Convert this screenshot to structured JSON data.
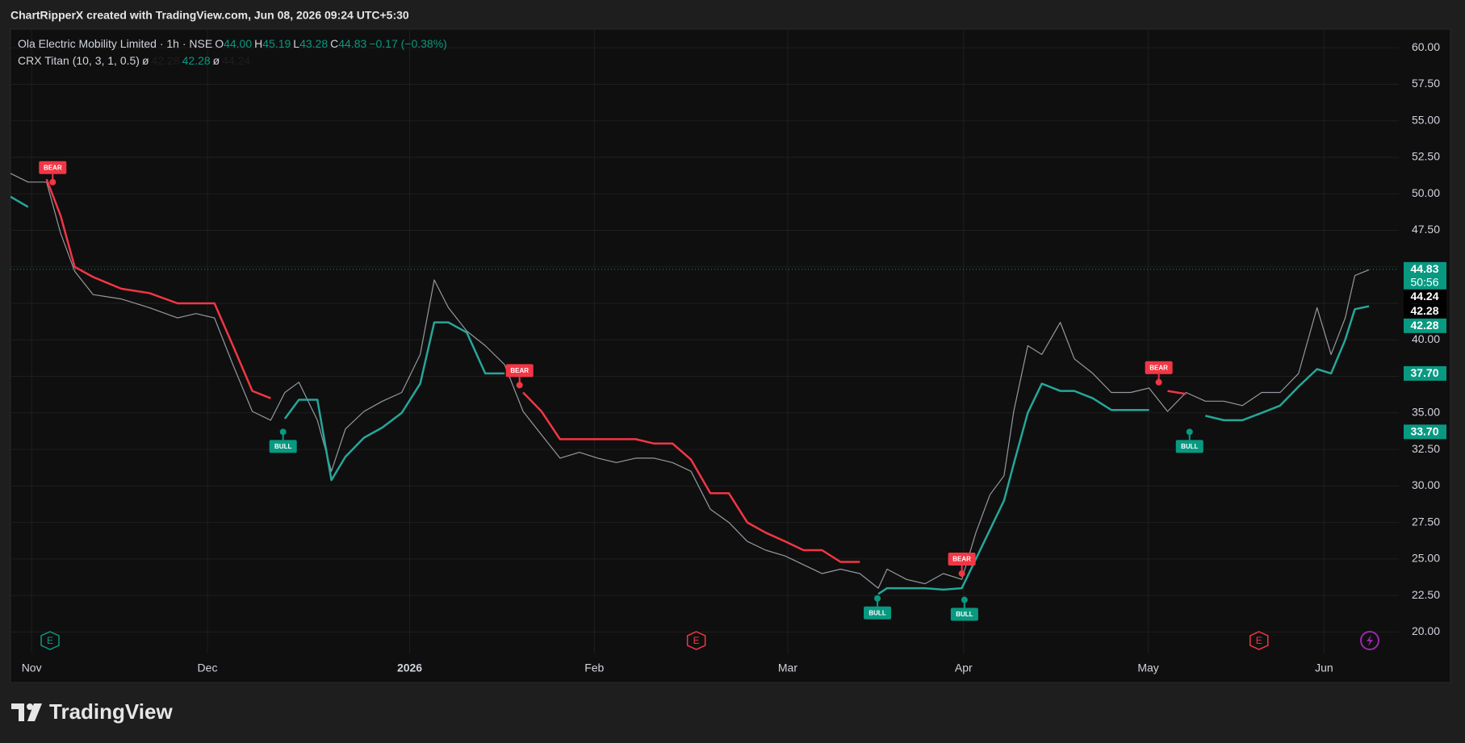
{
  "header": {
    "credit": "ChartRipperX created with TradingView.com, Jun 08, 2026 09:24 UTC+5:30"
  },
  "chart_data": {
    "type": "line",
    "symbol": "Ola Electric Mobility Limited · 1h · NSE",
    "ohlc": [
      {
        "name": "O",
        "text": "44.00"
      },
      {
        "name": "H",
        "text": "45.19"
      },
      {
        "name": "L",
        "text": "43.28"
      },
      {
        "name": "C",
        "text": "44.83"
      }
    ],
    "change": "−0.17 (−0.38%)",
    "readout_color": "#089981",
    "indicator": {
      "name": "CRX Titan (10, 3, 1, 0.5)",
      "readout": [
        {
          "text": "ø",
          "color": "#d1d4dc"
        },
        {
          "text": "42.28",
          "color": "#1e1e1e"
        },
        {
          "text": "42.28",
          "color": "#089981"
        },
        {
          "text": "ø",
          "color": "#d1d4dc"
        },
        {
          "text": "44.24",
          "color": "#1e1e1e"
        }
      ]
    },
    "x": [
      -2.4,
      -0.4,
      1.7,
      3.3,
      4.9,
      7.0,
      10.2,
      13.4,
      16.6,
      18.7,
      20.8,
      22.9,
      25.1,
      27.2,
      28.8,
      30.4,
      32.5,
      34.1,
      35.7,
      37.8,
      39.9,
      42.1,
      44.2,
      45.8,
      47.4,
      49.5,
      51.6,
      53.8,
      55.9,
      58.0,
      60.1,
      62.3,
      64.4,
      66.5,
      68.7,
      70.8,
      72.9,
      75.0,
      77.2,
      79.3,
      81.4,
      83.5,
      85.7,
      87.8,
      89.9,
      92.0,
      94.2,
      96.3,
      97.3,
      99.5,
      101.6,
      103.7,
      105.8,
      107.4,
      109.0,
      110.6,
      111.7,
      113.3,
      114.9,
      117.0,
      118.6,
      120.7,
      122.8,
      125.0,
      127.1,
      129.2,
      131.3,
      133.5,
      135.6,
      137.7,
      139.9,
      142.0,
      144.1,
      146.2,
      147.8,
      149.4,
      150.5,
      152.1
    ],
    "series": [
      {
        "color": "#9598a1",
        "width": 1.2,
        "values": [
          51.4,
          50.8,
          50.8,
          47.3,
          44.7,
          43.1,
          42.8,
          42.2,
          41.5,
          41.8,
          41.5,
          38.3,
          35.1,
          34.5,
          36.4,
          37.1,
          34.5,
          31.0,
          33.9,
          35.1,
          35.8,
          36.4,
          39.0,
          44.1,
          42.2,
          40.6,
          39.6,
          38.3,
          35.1,
          33.5,
          31.9,
          32.3,
          31.9,
          31.6,
          31.9,
          31.9,
          31.6,
          31.0,
          28.4,
          27.5,
          26.2,
          25.6,
          25.2,
          24.6,
          24.0,
          24.3,
          24.0,
          23.0,
          24.3,
          23.6,
          23.3,
          24.0,
          23.6,
          26.8,
          29.4,
          30.7,
          35.1,
          39.6,
          39.0,
          41.2,
          38.7,
          37.7,
          36.4,
          36.4,
          36.7,
          35.1,
          36.4,
          35.8,
          35.8,
          35.5,
          36.4,
          36.4,
          37.7,
          42.2,
          39.0,
          41.5,
          44.4,
          44.8
        ]
      },
      {
        "color": "#26a69a",
        "width": 2.5,
        "values": [
          49.8,
          49.1,
          null,
          null,
          null,
          null,
          null,
          null,
          null,
          null,
          null,
          null,
          null,
          null,
          34.6,
          35.9,
          35.9,
          30.4,
          32.0,
          33.3,
          34.0,
          35.0,
          37.0,
          41.2,
          41.2,
          40.5,
          37.7,
          37.7,
          null,
          null,
          null,
          null,
          null,
          null,
          null,
          null,
          null,
          null,
          null,
          null,
          null,
          null,
          null,
          null,
          null,
          null,
          null,
          22.6,
          23.0,
          23.0,
          23.0,
          22.9,
          23.0,
          25.0,
          27.0,
          29.0,
          31.5,
          35.0,
          37.0,
          36.5,
          36.5,
          36.0,
          35.2,
          35.2,
          35.2,
          null,
          null,
          34.8,
          34.5,
          34.5,
          35.0,
          35.5,
          36.8,
          38.0,
          37.7,
          40.0,
          42.1,
          42.3
        ]
      },
      {
        "color": "#f23645",
        "width": 2.5,
        "values": [
          null,
          null,
          51.0,
          48.5,
          45.0,
          44.3,
          43.5,
          43.2,
          42.5,
          42.5,
          42.5,
          39.6,
          36.5,
          36.0,
          null,
          null,
          null,
          null,
          null,
          null,
          null,
          null,
          null,
          null,
          null,
          null,
          null,
          null,
          36.4,
          35.1,
          33.2,
          33.2,
          33.2,
          33.2,
          33.2,
          32.9,
          32.9,
          31.8,
          29.5,
          29.5,
          27.5,
          26.8,
          26.2,
          25.6,
          25.6,
          24.8,
          24.8,
          null,
          null,
          null,
          null,
          null,
          null,
          null,
          null,
          null,
          null,
          null,
          null,
          null,
          null,
          null,
          null,
          null,
          null,
          36.5,
          36.3,
          null,
          null,
          null,
          null,
          null,
          null,
          null,
          null,
          null,
          null,
          null
        ]
      }
    ],
    "xlim": [
      -2.4,
      155.5
    ],
    "xticks": [
      {
        "value": 0,
        "label": "Nov"
      },
      {
        "value": 20,
        "label": "Dec"
      },
      {
        "value": 43,
        "label": "2026"
      },
      {
        "value": 64,
        "label": "Feb"
      },
      {
        "value": 86,
        "label": "Mar"
      },
      {
        "value": 106,
        "label": "Apr"
      },
      {
        "value": 127,
        "label": "May"
      },
      {
        "value": 147,
        "label": "Jun"
      }
    ],
    "ylim": [
      18.53,
      61.28
    ],
    "yticks": [
      {
        "value": 20,
        "label": "20.00"
      },
      {
        "value": 22.5,
        "label": "22.50"
      },
      {
        "value": 25,
        "label": "25.00"
      },
      {
        "value": 27.5,
        "label": "27.50"
      },
      {
        "value": 30,
        "label": "30.00"
      },
      {
        "value": 32.5,
        "label": "32.50"
      },
      {
        "value": 35,
        "label": "35.00"
      },
      {
        "value": 37.5,
        "label": "37.50"
      },
      {
        "value": 40,
        "label": "40.00"
      },
      {
        "value": 42.5,
        "label": "42.50"
      },
      {
        "value": 45,
        "label": "45.00"
      },
      {
        "value": 47.5,
        "label": "47.50"
      },
      {
        "value": 50,
        "label": "50.00"
      },
      {
        "value": 52.5,
        "label": "52.50"
      },
      {
        "value": 55,
        "label": "55.00"
      },
      {
        "value": 57.5,
        "label": "57.50"
      },
      {
        "value": 60,
        "label": "60.00"
      }
    ],
    "grid": true,
    "last_price_line": true,
    "signals": [
      {
        "label": "BEAR",
        "x": 2.4,
        "y": 50.8,
        "color": "#f23645",
        "position": "above"
      },
      {
        "label": "BULL",
        "x": 28.6,
        "y": 33.7,
        "color": "#089981",
        "position": "below"
      },
      {
        "label": "BEAR",
        "x": 55.5,
        "y": 36.9,
        "color": "#f23645",
        "position": "above"
      },
      {
        "label": "BULL",
        "x": 96.2,
        "y": 22.3,
        "color": "#089981",
        "position": "below"
      },
      {
        "label": "BEAR",
        "x": 105.8,
        "y": 24.0,
        "color": "#f23645",
        "position": "above"
      },
      {
        "label": "BULL",
        "x": 106.1,
        "y": 22.2,
        "color": "#089981",
        "position": "below"
      },
      {
        "label": "BEAR",
        "x": 128.2,
        "y": 37.1,
        "color": "#f23645",
        "position": "above"
      },
      {
        "label": "BULL",
        "x": 131.7,
        "y": 33.7,
        "color": "#089981",
        "position": "below"
      }
    ],
    "events": [
      {
        "label": "E",
        "x": 2.1,
        "color": "#089981"
      },
      {
        "label": "E",
        "x": 75.6,
        "color": "#f23645"
      },
      {
        "label": "E",
        "x": 139.6,
        "color": "#f23645"
      }
    ],
    "price_tags": [
      {
        "value": 44.83,
        "color": "#089981",
        "countdown": "50:56"
      },
      {
        "value": 44.24,
        "color": "#000000"
      },
      {
        "value": 42.28,
        "color": "#000000"
      },
      {
        "value": 42.28,
        "color": "#089981"
      },
      {
        "value": 37.7,
        "label": "37.70",
        "color": "#089981"
      },
      {
        "value": 33.7,
        "label": "33.70",
        "color": "#089981"
      }
    ]
  },
  "footer": {
    "brand": "TradingView"
  }
}
